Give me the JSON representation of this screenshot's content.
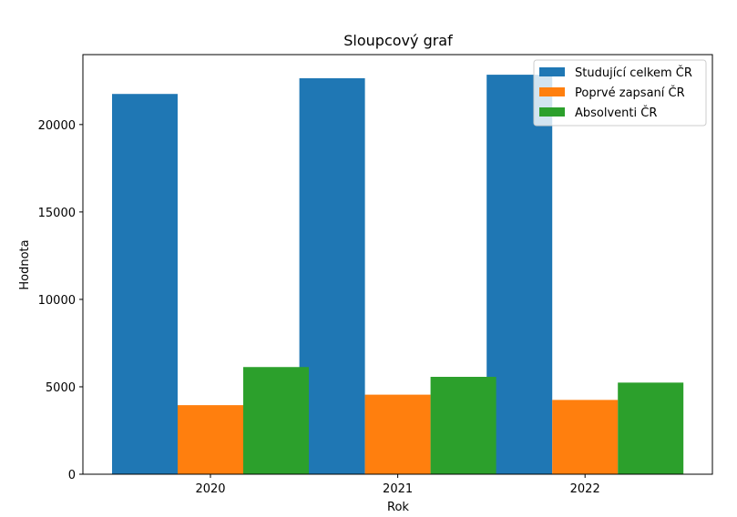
{
  "chart_data": {
    "type": "bar",
    "title": "Sloupcový graf",
    "xlabel": "Rok",
    "ylabel": "Hodnota",
    "categories": [
      "2020",
      "2021",
      "2022"
    ],
    "series": [
      {
        "name": "Studující celkem ČR",
        "color": "#1f77b4",
        "values": [
          21750,
          22650,
          22850
        ]
      },
      {
        "name": "Poprvé zapsaní ČR",
        "color": "#ff7f0e",
        "values": [
          3950,
          4550,
          4250
        ]
      },
      {
        "name": "Absolventi ČR",
        "color": "#2ca02c",
        "values": [
          6130,
          5570,
          5240
        ]
      }
    ],
    "ylim": [
      0,
      24000
    ],
    "yticks": [
      0,
      5000,
      10000,
      15000,
      20000
    ],
    "ytick_labels": [
      "0",
      "5000",
      "10000",
      "15000",
      "20000"
    ],
    "legend": "top-right",
    "grid": false
  }
}
